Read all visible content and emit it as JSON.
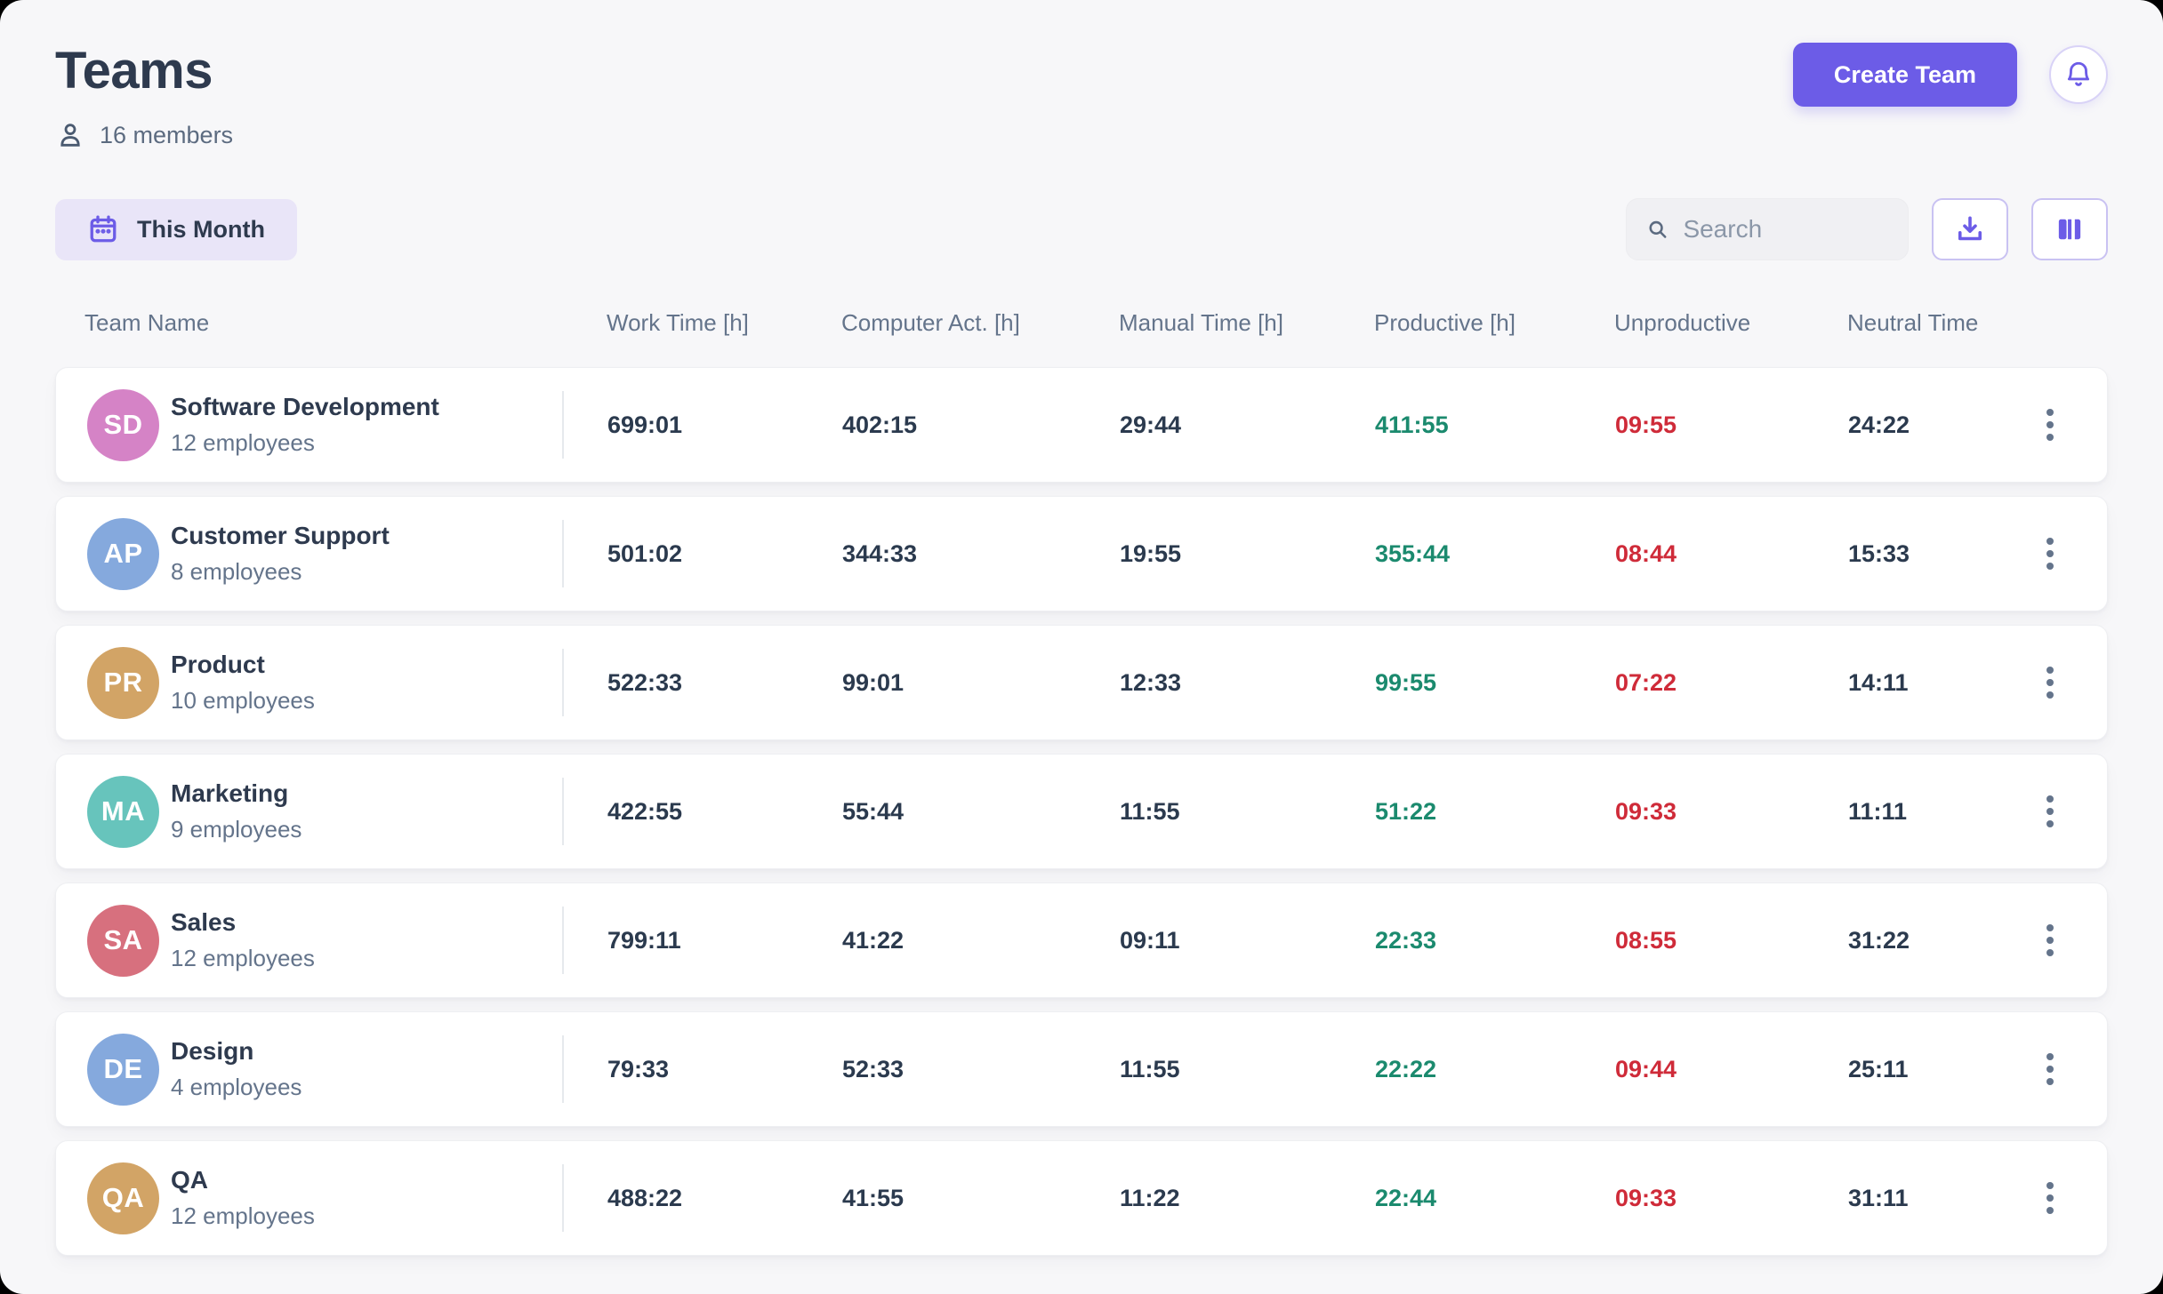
{
  "page": {
    "title": "Teams",
    "members_count": "16 members"
  },
  "header": {
    "create_team_label": "Create Team"
  },
  "toolbar": {
    "period_label": "This Month",
    "search_placeholder": "Search"
  },
  "table": {
    "columns": [
      "Team Name",
      "Work Time [h]",
      "Computer Act. [h]",
      "Manual Time [h]",
      "Productive [h]",
      "Unproductive",
      "Neutral Time"
    ],
    "rows": [
      {
        "initials": "SD",
        "avatar_color": "#D583C6",
        "name": "Software Development",
        "employees": "12 employees",
        "work_time": "699:01",
        "computer_act": "402:15",
        "manual_time": "29:44",
        "productive": "411:55",
        "unproductive": "09:55",
        "neutral": "24:22"
      },
      {
        "initials": "AP",
        "avatar_color": "#85A9DD",
        "name": "Customer Support",
        "employees": "8 employees",
        "work_time": "501:02",
        "computer_act": "344:33",
        "manual_time": "19:55",
        "productive": "355:44",
        "unproductive": "08:44",
        "neutral": "15:33"
      },
      {
        "initials": "PR",
        "avatar_color": "#D2A466",
        "name": "Product",
        "employees": "10 employees",
        "work_time": "522:33",
        "computer_act": "99:01",
        "manual_time": "12:33",
        "productive": "99:55",
        "unproductive": "07:22",
        "neutral": "14:11"
      },
      {
        "initials": "MA",
        "avatar_color": "#67C4BC",
        "name": "Marketing",
        "employees": "9 employees",
        "work_time": "422:55",
        "computer_act": "55:44",
        "manual_time": "11:55",
        "productive": "51:22",
        "unproductive": "09:33",
        "neutral": "11:11"
      },
      {
        "initials": "SA",
        "avatar_color": "#D7707E",
        "name": "Sales",
        "employees": "12 employees",
        "work_time": "799:11",
        "computer_act": "41:22",
        "manual_time": "09:11",
        "productive": "22:33",
        "unproductive": "08:55",
        "neutral": "31:22"
      },
      {
        "initials": "DE",
        "avatar_color": "#85A9DD",
        "name": "Design",
        "employees": "4 employees",
        "work_time": "79:33",
        "computer_act": "52:33",
        "manual_time": "11:55",
        "productive": "22:22",
        "unproductive": "09:44",
        "neutral": "25:11"
      },
      {
        "initials": "QA",
        "avatar_color": "#D2A466",
        "name": "QA",
        "employees": "12 employees",
        "work_time": "488:22",
        "computer_act": "41:55",
        "manual_time": "11:22",
        "productive": "22:44",
        "unproductive": "09:33",
        "neutral": "31:11"
      }
    ]
  },
  "colors": {
    "accent": "#6C5CE7",
    "productive_text": "#1B8A6E",
    "unproductive_text": "#CF2B39",
    "dark_text": "#2B3A4E",
    "muted_text": "#64748B"
  }
}
